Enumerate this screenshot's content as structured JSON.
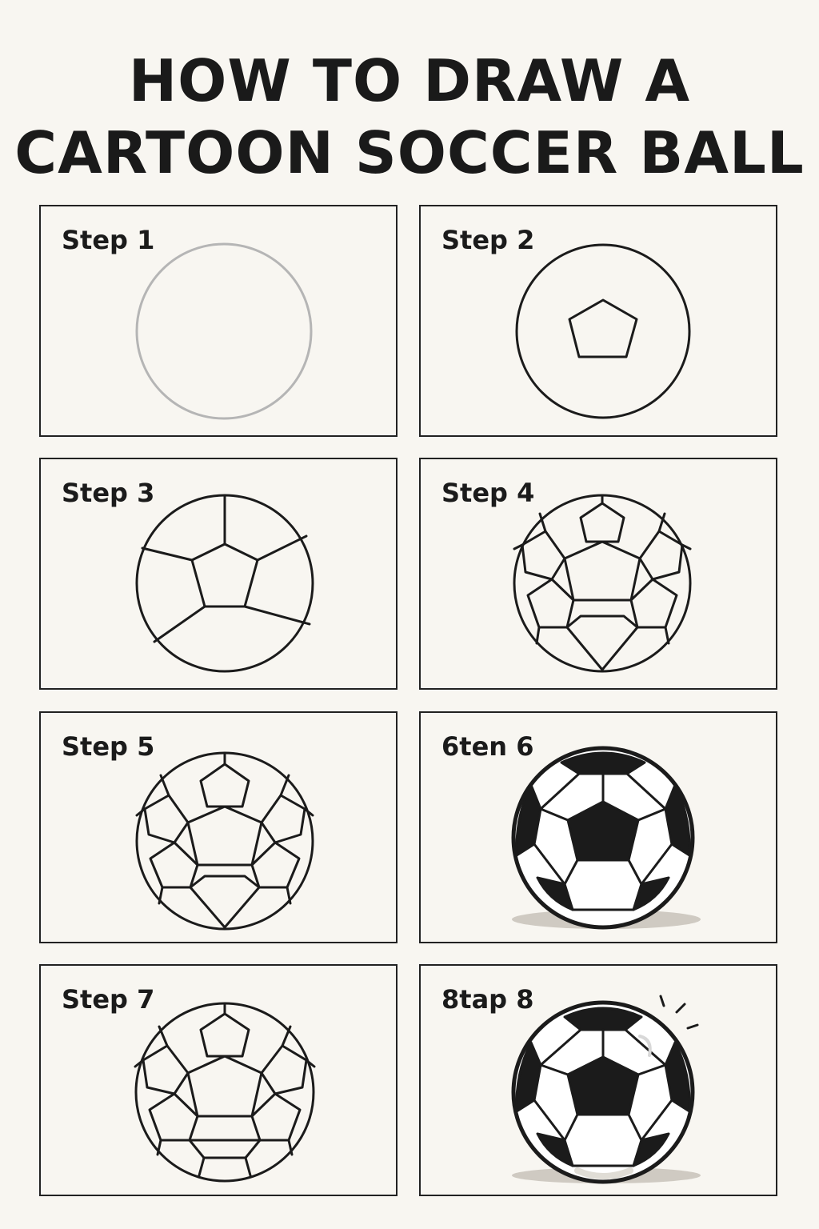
{
  "title_line1": "HOW TO DRAW A",
  "title_line2": "CARTOON SOCCER BALL",
  "steps": [
    {
      "label": "Step 1"
    },
    {
      "label": "Step 2"
    },
    {
      "label": "Step 3"
    },
    {
      "label": "Step 4"
    },
    {
      "label": "Step 5"
    },
    {
      "label": "6ten 6"
    },
    {
      "label": "Step 7"
    },
    {
      "label": "8tap 8"
    }
  ],
  "colors": {
    "background": "#f8f6f1",
    "ink": "#1b1b1b",
    "guide_circle": "#b5b5b5",
    "shadow": "#cfcac2"
  }
}
